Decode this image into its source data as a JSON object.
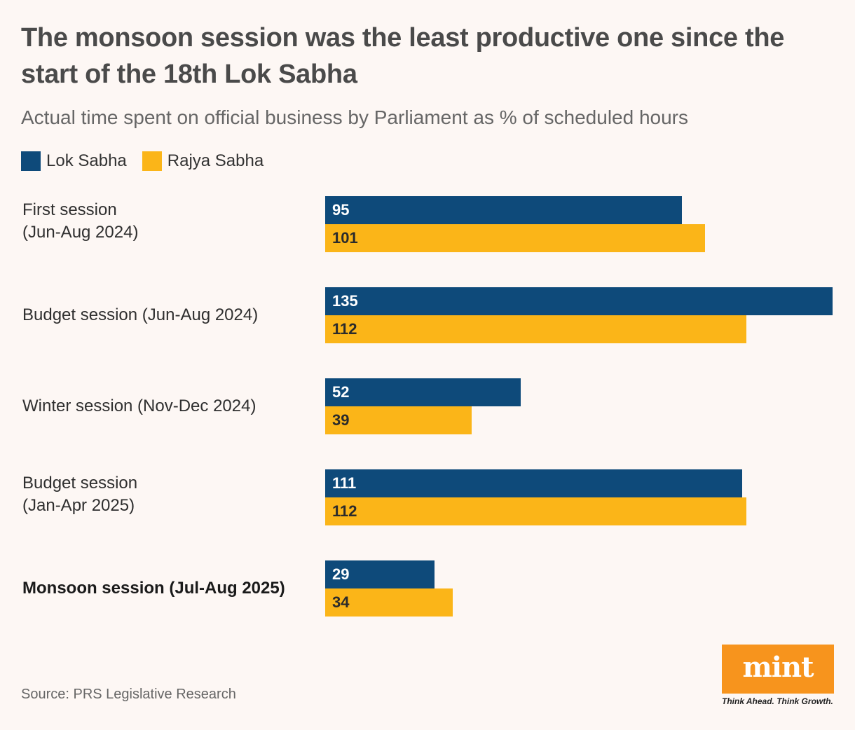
{
  "chart_data": {
    "type": "bar",
    "orientation": "horizontal",
    "title": "The monsoon session was the least productive one since the start of the 18th Lok Sabha",
    "subtitle": "Actual time spent on official business by Parliament as % of scheduled hours",
    "categories": [
      {
        "line1": "First session",
        "line2": "(Jun-Aug 2024)",
        "highlight": false
      },
      {
        "line1": "Budget session (Jun-Aug 2024)",
        "line2": "",
        "highlight": false
      },
      {
        "line1": "Winter session (Nov-Dec 2024)",
        "line2": "",
        "highlight": false
      },
      {
        "line1": "Budget session",
        "line2": "(Jan-Apr 2025)",
        "highlight": false
      },
      {
        "line1": "Monsoon session (Jul-Aug 2025)",
        "line2": "",
        "highlight": true
      }
    ],
    "series": [
      {
        "name": "Lok Sabha",
        "color": "#0e4a7a",
        "label_color": "#ffffff",
        "values": [
          95,
          135,
          52,
          111,
          29
        ]
      },
      {
        "name": "Rajya Sabha",
        "color": "#fbb518",
        "label_color": "#2b2b2b",
        "values": [
          101,
          112,
          39,
          112,
          34
        ]
      }
    ],
    "xlim": [
      0,
      135
    ],
    "grid": false,
    "legend_position": "top-left"
  },
  "source": "Source: PRS Legislative Research",
  "logo": {
    "text": "mint",
    "tagline": "Think Ahead. Think Growth."
  }
}
